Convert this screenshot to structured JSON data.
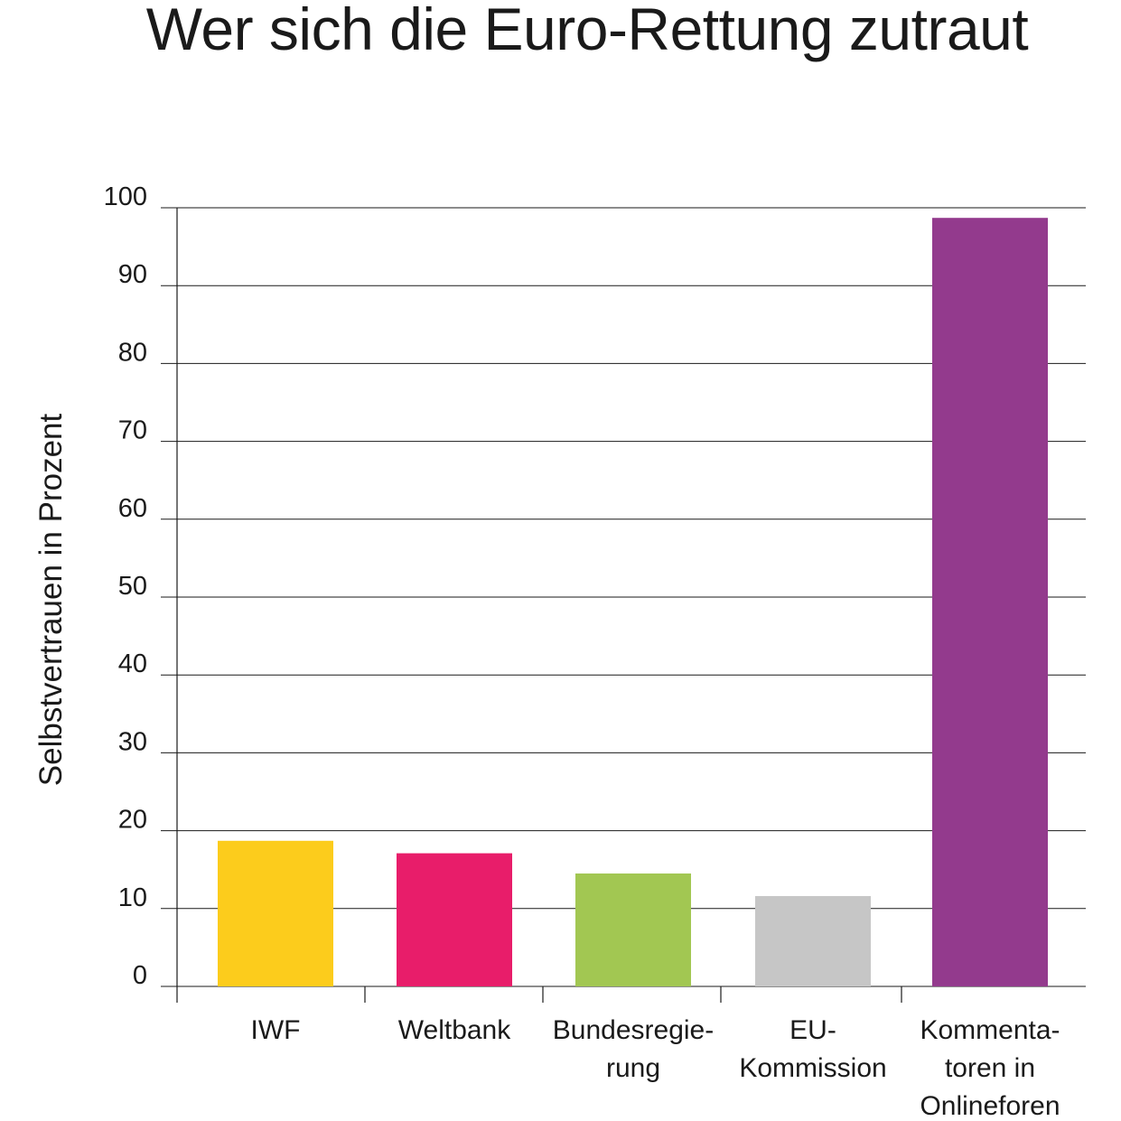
{
  "chart_data": {
    "type": "bar",
    "title": "Wer sich die Euro-Rettung zutraut",
    "ylabel": "Selbstvertrauen in Prozent",
    "xlabel": "",
    "ylim": [
      0,
      100
    ],
    "yticks": [
      0,
      10,
      20,
      30,
      40,
      50,
      60,
      70,
      80,
      90,
      100
    ],
    "grid": true,
    "categories": [
      [
        "IWF"
      ],
      [
        "Weltbank"
      ],
      [
        "Bundesregie-",
        "rung"
      ],
      [
        "EU-",
        "Kommission"
      ],
      [
        "Kommenta-",
        "toren in",
        "Onlineforen"
      ]
    ],
    "values": [
      18.7,
      17.1,
      14.5,
      11.6,
      98.7
    ],
    "colors": [
      "#fccc1c",
      "#e81d6a",
      "#a2c752",
      "#c6c6c6",
      "#933a8d"
    ]
  }
}
